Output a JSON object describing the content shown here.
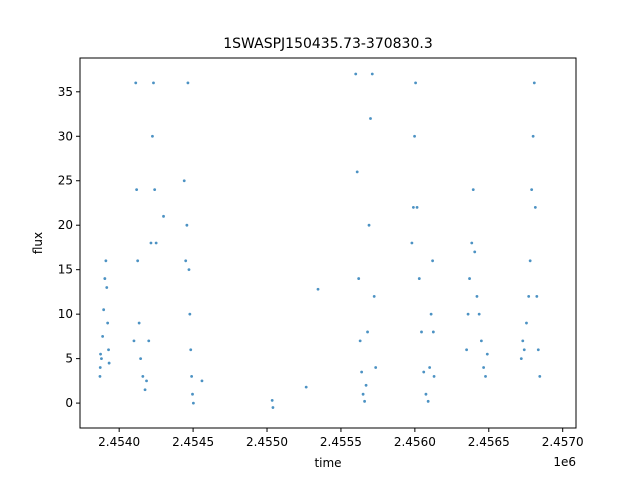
{
  "chart_data": {
    "type": "scatter",
    "title": "1SWASPJ150435.73-370830.3",
    "xlabel": "time",
    "ylabel": "flux",
    "x_offset_label": "1e6",
    "xlim": [
      2453735,
      2457090
    ],
    "ylim": [
      -2.8,
      38.8
    ],
    "xticks": [
      2454000,
      2454500,
      2455000,
      2455500,
      2456000,
      2456500,
      2457000
    ],
    "xtick_labels": [
      "2.4540",
      "2.4545",
      "2.4550",
      "2.4555",
      "2.4560",
      "2.4565",
      "2.4570"
    ],
    "yticks": [
      0,
      5,
      10,
      15,
      20,
      25,
      30,
      35
    ],
    "ytick_labels": [
      "0",
      "5",
      "10",
      "15",
      "20",
      "25",
      "30",
      "35"
    ],
    "grid": false,
    "legend": "none",
    "point_color": "#1f77b4",
    "segments": [
      {
        "x": 2453870,
        "y": 3.0
      },
      {
        "x": 2453872,
        "y": 4.0
      },
      {
        "x": 2453874,
        "y": 5.5
      },
      {
        "x": 2453880,
        "y": 5.0
      },
      {
        "x": 2453888,
        "y": 7.5
      },
      {
        "x": 2453895,
        "y": 10.5
      },
      {
        "x": 2453903,
        "y": 14.0
      },
      {
        "x": 2453910,
        "y": 16.0
      },
      {
        "x": 2453916,
        "y": 13.0
      },
      {
        "x": 2453922,
        "y": 9.0
      },
      {
        "x": 2453928,
        "y": 6.0
      },
      {
        "x": 2453932,
        "y": 4.5
      },
      {
        "x": 2454100,
        "y": 7.0
      },
      {
        "x": 2454112,
        "y": 36.0
      },
      {
        "x": 2454118,
        "y": 24.0
      },
      {
        "x": 2454125,
        "y": 16.0
      },
      {
        "x": 2454135,
        "y": 9.0
      },
      {
        "x": 2454145,
        "y": 5.0
      },
      {
        "x": 2454160,
        "y": 3.0
      },
      {
        "x": 2454175,
        "y": 1.5
      },
      {
        "x": 2454185,
        "y": 2.5
      },
      {
        "x": 2454200,
        "y": 7.0
      },
      {
        "x": 2454215,
        "y": 18.0
      },
      {
        "x": 2454225,
        "y": 30.0
      },
      {
        "x": 2454232,
        "y": 36.0
      },
      {
        "x": 2454240,
        "y": 24.0
      },
      {
        "x": 2454250,
        "y": 18.0
      },
      {
        "x": 2454300,
        "y": 21.0
      },
      {
        "x": 2454440,
        "y": 25.0
      },
      {
        "x": 2454450,
        "y": 16.0
      },
      {
        "x": 2454458,
        "y": 20.0
      },
      {
        "x": 2454465,
        "y": 36.0
      },
      {
        "x": 2454472,
        "y": 15.0
      },
      {
        "x": 2454478,
        "y": 10.0
      },
      {
        "x": 2454484,
        "y": 6.0
      },
      {
        "x": 2454490,
        "y": 3.0
      },
      {
        "x": 2454496,
        "y": 1.0
      },
      {
        "x": 2454502,
        "y": 0.0
      },
      {
        "x": 2454560,
        "y": 2.5
      },
      {
        "x": 2455035,
        "y": 0.3
      },
      {
        "x": 2455040,
        "y": -0.5
      },
      {
        "x": 2455265,
        "y": 1.8
      },
      {
        "x": 2455345,
        "y": 12.8
      },
      {
        "x": 2455600,
        "y": 37.0
      },
      {
        "x": 2455610,
        "y": 26.0
      },
      {
        "x": 2455620,
        "y": 14.0
      },
      {
        "x": 2455630,
        "y": 7.0
      },
      {
        "x": 2455640,
        "y": 3.5
      },
      {
        "x": 2455650,
        "y": 1.0
      },
      {
        "x": 2455660,
        "y": 0.2
      },
      {
        "x": 2455670,
        "y": 2.0
      },
      {
        "x": 2455680,
        "y": 8.0
      },
      {
        "x": 2455690,
        "y": 20.0
      },
      {
        "x": 2455700,
        "y": 32.0
      },
      {
        "x": 2455712,
        "y": 37.0
      },
      {
        "x": 2455725,
        "y": 12.0
      },
      {
        "x": 2455735,
        "y": 4.0
      },
      {
        "x": 2455980,
        "y": 18.0
      },
      {
        "x": 2455990,
        "y": 22.0
      },
      {
        "x": 2455998,
        "y": 30.0
      },
      {
        "x": 2456005,
        "y": 36.0
      },
      {
        "x": 2456015,
        "y": 22.0
      },
      {
        "x": 2456030,
        "y": 14.0
      },
      {
        "x": 2456045,
        "y": 8.0
      },
      {
        "x": 2456060,
        "y": 3.5
      },
      {
        "x": 2456075,
        "y": 1.0
      },
      {
        "x": 2456090,
        "y": 0.2
      },
      {
        "x": 2456100,
        "y": 4.0
      },
      {
        "x": 2456110,
        "y": 10.0
      },
      {
        "x": 2456120,
        "y": 16.0
      },
      {
        "x": 2456125,
        "y": 8.0
      },
      {
        "x": 2456130,
        "y": 3.0
      },
      {
        "x": 2456350,
        "y": 6.0
      },
      {
        "x": 2456360,
        "y": 10.0
      },
      {
        "x": 2456370,
        "y": 14.0
      },
      {
        "x": 2456385,
        "y": 18.0
      },
      {
        "x": 2456395,
        "y": 24.0
      },
      {
        "x": 2456405,
        "y": 17.0
      },
      {
        "x": 2456420,
        "y": 12.0
      },
      {
        "x": 2456435,
        "y": 10.0
      },
      {
        "x": 2456450,
        "y": 7.0
      },
      {
        "x": 2456465,
        "y": 4.0
      },
      {
        "x": 2456478,
        "y": 3.0
      },
      {
        "x": 2456490,
        "y": 5.5
      },
      {
        "x": 2456720,
        "y": 5.0
      },
      {
        "x": 2456730,
        "y": 7.0
      },
      {
        "x": 2456740,
        "y": 6.0
      },
      {
        "x": 2456755,
        "y": 9.0
      },
      {
        "x": 2456770,
        "y": 12.0
      },
      {
        "x": 2456780,
        "y": 16.0
      },
      {
        "x": 2456790,
        "y": 24.0
      },
      {
        "x": 2456800,
        "y": 30.0
      },
      {
        "x": 2456808,
        "y": 36.0
      },
      {
        "x": 2456815,
        "y": 22.0
      },
      {
        "x": 2456825,
        "y": 12.0
      },
      {
        "x": 2456835,
        "y": 6.0
      },
      {
        "x": 2456845,
        "y": 3.0
      }
    ]
  }
}
